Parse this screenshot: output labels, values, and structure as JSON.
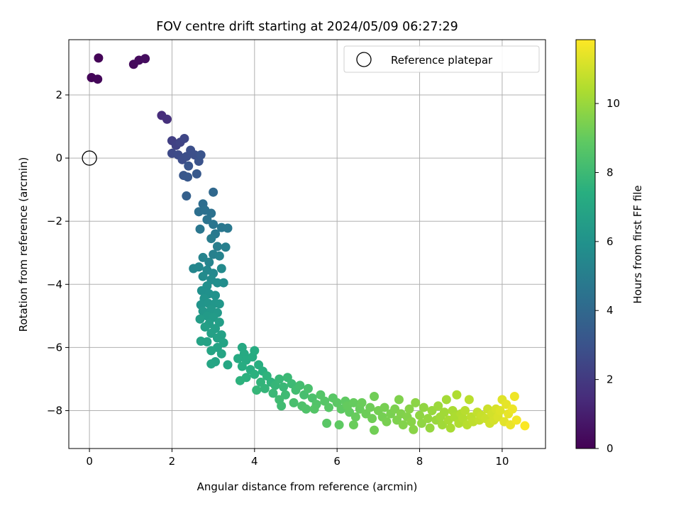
{
  "chart_data": {
    "type": "scatter",
    "title": "FOV centre drift starting at 2024/05/09 06:27:29",
    "xlabel": "Angular distance from reference (arcmin)",
    "ylabel": "Rotation from reference (arcmin)",
    "xlim": [
      -0.5,
      11.05
    ],
    "ylim": [
      -9.2,
      3.75
    ],
    "xticks": [
      0,
      2,
      4,
      6,
      8,
      10
    ],
    "yticks": [
      2,
      0,
      -2,
      -4,
      -6,
      -8
    ],
    "xtick_labels": [
      "0",
      "2",
      "4",
      "6",
      "8",
      "10"
    ],
    "ytick_labels": [
      "2",
      "0",
      "−2",
      "−4",
      "−6",
      "−8"
    ],
    "grid": true,
    "legend": {
      "position": "top-right",
      "entries": [
        "Reference platepar"
      ]
    },
    "colormap": "viridis",
    "colorbar": {
      "label": "Hours from first FF file",
      "range": [
        0,
        11.85
      ],
      "ticks": [
        0,
        2,
        4,
        6,
        8,
        10
      ],
      "tick_labels": [
        "0",
        "2",
        "4",
        "6",
        "8",
        "10"
      ]
    },
    "reference_point": {
      "x": 0,
      "y": 0
    },
    "series": [
      {
        "points": [
          {
            "x": 0.05,
            "y": 2.55,
            "c": 0.15
          },
          {
            "x": 0.2,
            "y": 2.5,
            "c": 0.2
          },
          {
            "x": 0.22,
            "y": 3.17,
            "c": 0.1
          },
          {
            "x": 1.07,
            "y": 2.97,
            "c": 0.3
          },
          {
            "x": 1.2,
            "y": 3.1,
            "c": 0.35
          },
          {
            "x": 1.35,
            "y": 3.15,
            "c": 0.4
          },
          {
            "x": 1.75,
            "y": 1.35,
            "c": 1.5
          },
          {
            "x": 1.88,
            "y": 1.23,
            "c": 1.6
          },
          {
            "x": 2.0,
            "y": 0.55,
            "c": 2.2
          },
          {
            "x": 2.1,
            "y": 0.4,
            "c": 2.3
          },
          {
            "x": 2.2,
            "y": 0.5,
            "c": 2.4
          },
          {
            "x": 2.3,
            "y": 0.62,
            "c": 2.5
          },
          {
            "x": 2.0,
            "y": 0.15,
            "c": 2.6
          },
          {
            "x": 2.15,
            "y": 0.1,
            "c": 2.7
          },
          {
            "x": 2.25,
            "y": -0.05,
            "c": 2.75
          },
          {
            "x": 2.35,
            "y": 0.05,
            "c": 2.8
          },
          {
            "x": 2.45,
            "y": 0.25,
            "c": 2.85
          },
          {
            "x": 2.55,
            "y": 0.1,
            "c": 2.9
          },
          {
            "x": 2.65,
            "y": -0.1,
            "c": 3.0
          },
          {
            "x": 2.7,
            "y": 0.1,
            "c": 3.05
          },
          {
            "x": 2.4,
            "y": -0.25,
            "c": 3.1
          },
          {
            "x": 2.28,
            "y": -0.55,
            "c": 3.2
          },
          {
            "x": 2.38,
            "y": -0.6,
            "c": 3.25
          },
          {
            "x": 2.6,
            "y": -0.5,
            "c": 3.3
          },
          {
            "x": 2.35,
            "y": -1.2,
            "c": 3.6
          },
          {
            "x": 3.0,
            "y": -1.08,
            "c": 4.0
          },
          {
            "x": 2.75,
            "y": -1.45,
            "c": 4.2
          },
          {
            "x": 2.65,
            "y": -1.7,
            "c": 4.3
          },
          {
            "x": 2.8,
            "y": -1.65,
            "c": 4.35
          },
          {
            "x": 2.95,
            "y": -1.75,
            "c": 4.4
          },
          {
            "x": 2.85,
            "y": -1.95,
            "c": 4.5
          },
          {
            "x": 3.0,
            "y": -2.1,
            "c": 4.6
          },
          {
            "x": 2.68,
            "y": -2.25,
            "c": 4.65
          },
          {
            "x": 3.2,
            "y": -2.2,
            "c": 4.7
          },
          {
            "x": 3.35,
            "y": -2.22,
            "c": 4.75
          },
          {
            "x": 3.05,
            "y": -2.4,
            "c": 4.8
          },
          {
            "x": 2.95,
            "y": -2.55,
            "c": 4.9
          },
          {
            "x": 3.1,
            "y": -2.8,
            "c": 5.0
          },
          {
            "x": 3.3,
            "y": -2.82,
            "c": 5.05
          },
          {
            "x": 3.0,
            "y": -3.05,
            "c": 5.1
          },
          {
            "x": 3.15,
            "y": -3.1,
            "c": 5.2
          },
          {
            "x": 2.75,
            "y": -3.15,
            "c": 5.25
          },
          {
            "x": 2.9,
            "y": -3.3,
            "c": 5.3
          },
          {
            "x": 2.52,
            "y": -3.5,
            "c": 5.4
          },
          {
            "x": 2.65,
            "y": -3.45,
            "c": 5.45
          },
          {
            "x": 2.85,
            "y": -3.55,
            "c": 5.5
          },
          {
            "x": 3.0,
            "y": -3.65,
            "c": 5.55
          },
          {
            "x": 3.2,
            "y": -3.5,
            "c": 5.6
          },
          {
            "x": 2.75,
            "y": -3.75,
            "c": 5.65
          },
          {
            "x": 2.95,
            "y": -3.85,
            "c": 5.7
          },
          {
            "x": 3.25,
            "y": -3.95,
            "c": 5.75
          },
          {
            "x": 3.1,
            "y": -3.95,
            "c": 5.8
          },
          {
            "x": 2.85,
            "y": -4.05,
            "c": 5.85
          },
          {
            "x": 2.72,
            "y": -4.2,
            "c": 5.9
          },
          {
            "x": 2.9,
            "y": -4.3,
            "c": 5.95
          },
          {
            "x": 3.05,
            "y": -4.35,
            "c": 6.0
          },
          {
            "x": 2.78,
            "y": -4.45,
            "c": 6.05
          },
          {
            "x": 2.7,
            "y": -4.65,
            "c": 6.1
          },
          {
            "x": 2.88,
            "y": -4.6,
            "c": 6.15
          },
          {
            "x": 3.05,
            "y": -4.6,
            "c": 6.2
          },
          {
            "x": 3.15,
            "y": -4.62,
            "c": 6.22
          },
          {
            "x": 2.75,
            "y": -4.85,
            "c": 6.25
          },
          {
            "x": 2.95,
            "y": -4.8,
            "c": 6.3
          },
          {
            "x": 3.1,
            "y": -4.9,
            "c": 6.35
          },
          {
            "x": 2.85,
            "y": -5.0,
            "c": 6.4
          },
          {
            "x": 3.0,
            "y": -5.05,
            "c": 6.45
          },
          {
            "x": 2.68,
            "y": -5.1,
            "c": 6.5
          },
          {
            "x": 2.9,
            "y": -5.25,
            "c": 6.55
          },
          {
            "x": 3.15,
            "y": -5.2,
            "c": 6.6
          },
          {
            "x": 2.8,
            "y": -5.35,
            "c": 6.62
          },
          {
            "x": 3.05,
            "y": -5.4,
            "c": 6.65
          },
          {
            "x": 2.95,
            "y": -5.55,
            "c": 6.7
          },
          {
            "x": 3.2,
            "y": -5.6,
            "c": 6.72
          },
          {
            "x": 3.1,
            "y": -5.7,
            "c": 6.75
          },
          {
            "x": 2.7,
            "y": -5.8,
            "c": 6.78
          },
          {
            "x": 2.85,
            "y": -5.82,
            "c": 6.8
          },
          {
            "x": 3.25,
            "y": -5.85,
            "c": 6.82
          },
          {
            "x": 3.1,
            "y": -6.0,
            "c": 6.85
          },
          {
            "x": 2.95,
            "y": -6.1,
            "c": 6.88
          },
          {
            "x": 3.2,
            "y": -6.2,
            "c": 6.9
          },
          {
            "x": 3.05,
            "y": -6.45,
            "c": 6.92
          },
          {
            "x": 2.95,
            "y": -6.52,
            "c": 6.95
          },
          {
            "x": 3.35,
            "y": -6.55,
            "c": 7.0
          },
          {
            "x": 3.7,
            "y": -6.0,
            "c": 7.1
          },
          {
            "x": 3.75,
            "y": -6.2,
            "c": 7.15
          },
          {
            "x": 3.6,
            "y": -6.35,
            "c": 7.2
          },
          {
            "x": 3.8,
            "y": -6.4,
            "c": 7.22
          },
          {
            "x": 3.95,
            "y": -6.3,
            "c": 7.25
          },
          {
            "x": 4.0,
            "y": -6.1,
            "c": 7.28
          },
          {
            "x": 3.7,
            "y": -6.6,
            "c": 7.3
          },
          {
            "x": 3.9,
            "y": -6.7,
            "c": 7.35
          },
          {
            "x": 4.1,
            "y": -6.55,
            "c": 7.4
          },
          {
            "x": 4.2,
            "y": -6.75,
            "c": 7.45
          },
          {
            "x": 4.0,
            "y": -6.85,
            "c": 7.5
          },
          {
            "x": 3.8,
            "y": -6.95,
            "c": 7.52
          },
          {
            "x": 3.65,
            "y": -7.05,
            "c": 7.55
          },
          {
            "x": 4.3,
            "y": -6.9,
            "c": 7.6
          },
          {
            "x": 4.4,
            "y": -7.1,
            "c": 7.65
          },
          {
            "x": 4.15,
            "y": -7.1,
            "c": 7.7
          },
          {
            "x": 4.25,
            "y": -7.3,
            "c": 7.75
          },
          {
            "x": 4.05,
            "y": -7.35,
            "c": 7.78
          },
          {
            "x": 4.5,
            "y": -7.2,
            "c": 7.8
          },
          {
            "x": 4.6,
            "y": -7.0,
            "c": 7.85
          },
          {
            "x": 4.7,
            "y": -7.25,
            "c": 7.9
          },
          {
            "x": 4.45,
            "y": -7.45,
            "c": 7.92
          },
          {
            "x": 4.8,
            "y": -6.95,
            "c": 7.95
          },
          {
            "x": 4.9,
            "y": -7.15,
            "c": 8.0
          },
          {
            "x": 4.75,
            "y": -7.5,
            "c": 8.05
          },
          {
            "x": 4.6,
            "y": -7.65,
            "c": 8.08
          },
          {
            "x": 4.65,
            "y": -7.85,
            "c": 8.1
          },
          {
            "x": 5.0,
            "y": -7.35,
            "c": 8.15
          },
          {
            "x": 5.1,
            "y": -7.2,
            "c": 8.2
          },
          {
            "x": 5.2,
            "y": -7.5,
            "c": 8.25
          },
          {
            "x": 4.95,
            "y": -7.75,
            "c": 8.3
          },
          {
            "x": 5.3,
            "y": -7.3,
            "c": 8.35
          },
          {
            "x": 5.4,
            "y": -7.6,
            "c": 8.4
          },
          {
            "x": 5.15,
            "y": -7.85,
            "c": 8.45
          },
          {
            "x": 5.25,
            "y": -7.95,
            "c": 8.5
          },
          {
            "x": 5.5,
            "y": -7.8,
            "c": 8.55
          },
          {
            "x": 5.6,
            "y": -7.5,
            "c": 8.6
          },
          {
            "x": 5.45,
            "y": -7.95,
            "c": 8.62
          },
          {
            "x": 5.7,
            "y": -7.7,
            "c": 8.65
          },
          {
            "x": 5.8,
            "y": -7.9,
            "c": 8.7
          },
          {
            "x": 5.9,
            "y": -7.6,
            "c": 8.72
          },
          {
            "x": 5.75,
            "y": -8.4,
            "c": 8.75
          },
          {
            "x": 6.0,
            "y": -7.75,
            "c": 8.8
          },
          {
            "x": 6.1,
            "y": -7.95,
            "c": 8.85
          },
          {
            "x": 6.05,
            "y": -8.45,
            "c": 8.88
          },
          {
            "x": 6.2,
            "y": -7.7,
            "c": 8.9
          },
          {
            "x": 6.3,
            "y": -8.05,
            "c": 8.95
          },
          {
            "x": 6.25,
            "y": -7.85,
            "c": 9.0
          },
          {
            "x": 6.4,
            "y": -7.75,
            "c": 9.02
          },
          {
            "x": 6.45,
            "y": -8.2,
            "c": 9.05
          },
          {
            "x": 6.55,
            "y": -7.95,
            "c": 9.08
          },
          {
            "x": 6.4,
            "y": -8.45,
            "c": 9.1
          },
          {
            "x": 6.6,
            "y": -7.75,
            "c": 9.12
          },
          {
            "x": 6.7,
            "y": -8.1,
            "c": 9.15
          },
          {
            "x": 6.8,
            "y": -7.9,
            "c": 9.18
          },
          {
            "x": 6.85,
            "y": -8.25,
            "c": 9.2
          },
          {
            "x": 6.9,
            "y": -7.55,
            "c": 9.22
          },
          {
            "x": 6.9,
            "y": -8.62,
            "c": 9.25
          },
          {
            "x": 7.0,
            "y": -8.0,
            "c": 9.3
          },
          {
            "x": 7.1,
            "y": -8.2,
            "c": 9.32
          },
          {
            "x": 7.15,
            "y": -7.9,
            "c": 9.35
          },
          {
            "x": 7.2,
            "y": -8.35,
            "c": 9.38
          },
          {
            "x": 7.3,
            "y": -8.1,
            "c": 9.4
          },
          {
            "x": 7.4,
            "y": -7.95,
            "c": 9.45
          },
          {
            "x": 7.45,
            "y": -8.3,
            "c": 9.48
          },
          {
            "x": 7.5,
            "y": -7.65,
            "c": 9.5
          },
          {
            "x": 7.55,
            "y": -8.1,
            "c": 9.55
          },
          {
            "x": 7.6,
            "y": -8.45,
            "c": 9.58
          },
          {
            "x": 7.7,
            "y": -8.2,
            "c": 9.6
          },
          {
            "x": 7.75,
            "y": -7.95,
            "c": 9.65
          },
          {
            "x": 7.8,
            "y": -8.35,
            "c": 9.68
          },
          {
            "x": 7.85,
            "y": -8.6,
            "c": 9.7
          },
          {
            "x": 7.9,
            "y": -7.75,
            "c": 9.75
          },
          {
            "x": 8.0,
            "y": -8.15,
            "c": 9.8
          },
          {
            "x": 8.05,
            "y": -8.4,
            "c": 9.82
          },
          {
            "x": 8.1,
            "y": -7.9,
            "c": 9.85
          },
          {
            "x": 8.2,
            "y": -8.25,
            "c": 9.9
          },
          {
            "x": 8.25,
            "y": -8.55,
            "c": 9.92
          },
          {
            "x": 8.3,
            "y": -8.0,
            "c": 9.95
          },
          {
            "x": 8.4,
            "y": -8.3,
            "c": 10.0
          },
          {
            "x": 8.45,
            "y": -7.85,
            "c": 10.05
          },
          {
            "x": 8.5,
            "y": -8.2,
            "c": 10.1
          },
          {
            "x": 8.55,
            "y": -8.45,
            "c": 10.12
          },
          {
            "x": 8.6,
            "y": -8.05,
            "c": 10.15
          },
          {
            "x": 8.65,
            "y": -7.65,
            "c": 10.2
          },
          {
            "x": 8.7,
            "y": -8.3,
            "c": 10.25
          },
          {
            "x": 8.75,
            "y": -8.55,
            "c": 10.28
          },
          {
            "x": 8.8,
            "y": -8.0,
            "c": 10.3
          },
          {
            "x": 8.85,
            "y": -8.2,
            "c": 10.35
          },
          {
            "x": 8.9,
            "y": -7.5,
            "c": 10.4
          },
          {
            "x": 8.95,
            "y": -8.4,
            "c": 10.42
          },
          {
            "x": 9.0,
            "y": -8.1,
            "c": 10.45
          },
          {
            "x": 9.05,
            "y": -8.25,
            "c": 10.5
          },
          {
            "x": 9.1,
            "y": -8.0,
            "c": 10.55
          },
          {
            "x": 9.15,
            "y": -8.45,
            "c": 10.58
          },
          {
            "x": 9.2,
            "y": -7.65,
            "c": 10.6
          },
          {
            "x": 9.25,
            "y": -8.2,
            "c": 10.65
          },
          {
            "x": 9.3,
            "y": -8.35,
            "c": 10.7
          },
          {
            "x": 9.4,
            "y": -8.05,
            "c": 10.75
          },
          {
            "x": 9.45,
            "y": -8.3,
            "c": 10.8
          },
          {
            "x": 9.5,
            "y": -8.15,
            "c": 10.85
          },
          {
            "x": 9.6,
            "y": -8.25,
            "c": 10.9
          },
          {
            "x": 9.65,
            "y": -7.95,
            "c": 10.95
          },
          {
            "x": 9.7,
            "y": -8.4,
            "c": 11.0
          },
          {
            "x": 9.75,
            "y": -8.1,
            "c": 11.05
          },
          {
            "x": 9.8,
            "y": -8.3,
            "c": 11.1
          },
          {
            "x": 9.85,
            "y": -7.95,
            "c": 11.15
          },
          {
            "x": 9.9,
            "y": -8.2,
            "c": 11.2
          },
          {
            "x": 9.95,
            "y": -8.0,
            "c": 11.25
          },
          {
            "x": 10.0,
            "y": -7.65,
            "c": 11.3
          },
          {
            "x": 10.05,
            "y": -8.35,
            "c": 11.35
          },
          {
            "x": 10.1,
            "y": -7.8,
            "c": 11.4
          },
          {
            "x": 10.15,
            "y": -8.1,
            "c": 11.45
          },
          {
            "x": 10.2,
            "y": -8.45,
            "c": 11.5
          },
          {
            "x": 10.25,
            "y": -7.95,
            "c": 11.55
          },
          {
            "x": 10.3,
            "y": -7.55,
            "c": 11.6
          },
          {
            "x": 10.35,
            "y": -8.3,
            "c": 11.65
          },
          {
            "x": 10.55,
            "y": -8.48,
            "c": 11.8
          }
        ]
      }
    ]
  }
}
